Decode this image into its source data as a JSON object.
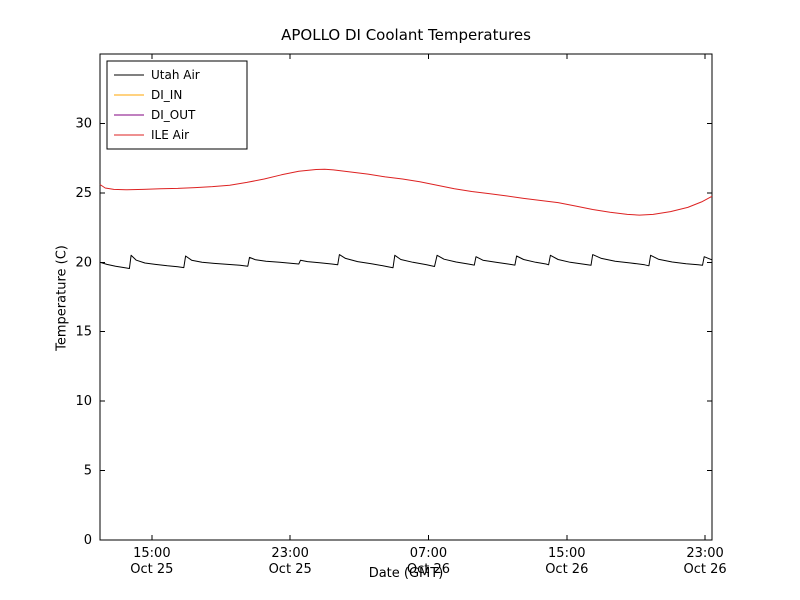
{
  "title": "APOLLO DI Coolant Temperatures",
  "chart_data": {
    "type": "line",
    "title": "APOLLO DI Coolant Temperatures",
    "xlabel": "Date (GMT)",
    "ylabel": "Temperature (C)",
    "xlim": [
      0,
      35.4
    ],
    "ylim": [
      0,
      35
    ],
    "grid": false,
    "legend_position": "upper left",
    "yticks": [
      0,
      5,
      10,
      15,
      20,
      25,
      30
    ],
    "xticks": [
      {
        "pos": 3,
        "time": "15:00",
        "date": "Oct 25"
      },
      {
        "pos": 11,
        "time": "23:00",
        "date": "Oct 25"
      },
      {
        "pos": 19,
        "time": "07:00",
        "date": "Oct 26"
      },
      {
        "pos": 27,
        "time": "15:00",
        "date": "Oct 26"
      },
      {
        "pos": 35,
        "time": "23:00",
        "date": "Oct 26"
      }
    ],
    "x_units": "hours relative to 12:00 Oct 25 GMT",
    "series": [
      {
        "name": "Utah Air",
        "color": "#000000",
        "points": [
          [
            0,
            20.0
          ],
          [
            0.4,
            19.85
          ],
          [
            0.9,
            19.72
          ],
          [
            1.4,
            19.62
          ],
          [
            1.7,
            19.55
          ],
          [
            1.8,
            20.5
          ],
          [
            2.1,
            20.15
          ],
          [
            2.6,
            19.95
          ],
          [
            3.2,
            19.85
          ],
          [
            3.9,
            19.75
          ],
          [
            4.5,
            19.68
          ],
          [
            4.85,
            19.62
          ],
          [
            4.95,
            20.45
          ],
          [
            5.3,
            20.15
          ],
          [
            5.9,
            20.0
          ],
          [
            6.6,
            19.92
          ],
          [
            7.4,
            19.85
          ],
          [
            8.1,
            19.78
          ],
          [
            8.55,
            19.72
          ],
          [
            8.65,
            20.35
          ],
          [
            9.0,
            20.18
          ],
          [
            9.6,
            20.08
          ],
          [
            10.4,
            20.0
          ],
          [
            11.1,
            19.92
          ],
          [
            11.5,
            19.88
          ],
          [
            11.6,
            20.15
          ],
          [
            12.0,
            20.05
          ],
          [
            12.7,
            19.96
          ],
          [
            13.4,
            19.88
          ],
          [
            13.75,
            19.82
          ],
          [
            13.85,
            20.55
          ],
          [
            14.2,
            20.28
          ],
          [
            14.9,
            20.05
          ],
          [
            15.7,
            19.9
          ],
          [
            16.5,
            19.72
          ],
          [
            16.95,
            19.6
          ],
          [
            17.05,
            20.5
          ],
          [
            17.4,
            20.2
          ],
          [
            18.1,
            20.0
          ],
          [
            18.9,
            19.82
          ],
          [
            19.35,
            19.7
          ],
          [
            19.5,
            20.5
          ],
          [
            19.9,
            20.22
          ],
          [
            20.6,
            20.02
          ],
          [
            21.3,
            19.88
          ],
          [
            21.65,
            19.8
          ],
          [
            21.75,
            20.4
          ],
          [
            22.15,
            20.15
          ],
          [
            22.9,
            20.0
          ],
          [
            23.6,
            19.88
          ],
          [
            24.0,
            19.8
          ],
          [
            24.1,
            20.45
          ],
          [
            24.5,
            20.2
          ],
          [
            25.2,
            20.0
          ],
          [
            25.8,
            19.88
          ],
          [
            25.95,
            19.82
          ],
          [
            26.05,
            20.5
          ],
          [
            26.5,
            20.2
          ],
          [
            27.2,
            20.0
          ],
          [
            28.0,
            19.86
          ],
          [
            28.4,
            19.78
          ],
          [
            28.5,
            20.55
          ],
          [
            29.0,
            20.28
          ],
          [
            29.8,
            20.08
          ],
          [
            30.7,
            19.95
          ],
          [
            31.5,
            19.82
          ],
          [
            31.75,
            19.75
          ],
          [
            31.85,
            20.5
          ],
          [
            32.3,
            20.22
          ],
          [
            33.1,
            20.02
          ],
          [
            33.9,
            19.9
          ],
          [
            34.6,
            19.82
          ],
          [
            34.85,
            19.78
          ],
          [
            34.95,
            20.4
          ],
          [
            35.3,
            20.22
          ],
          [
            35.4,
            20.18
          ]
        ]
      },
      {
        "name": "DI_IN",
        "color": "#ffa500",
        "points": []
      },
      {
        "name": "DI_OUT",
        "color": "#800080",
        "points": []
      },
      {
        "name": "ILE Air",
        "color": "#dd2222",
        "points": [
          [
            0,
            25.6
          ],
          [
            0.3,
            25.35
          ],
          [
            0.8,
            25.25
          ],
          [
            1.5,
            25.22
          ],
          [
            2.5,
            25.25
          ],
          [
            3.5,
            25.3
          ],
          [
            4.5,
            25.32
          ],
          [
            5.5,
            25.38
          ],
          [
            6.5,
            25.45
          ],
          [
            7.5,
            25.55
          ],
          [
            8.5,
            25.75
          ],
          [
            9.5,
            26.0
          ],
          [
            10.5,
            26.3
          ],
          [
            11.5,
            26.55
          ],
          [
            12.5,
            26.68
          ],
          [
            13.0,
            26.7
          ],
          [
            13.5,
            26.65
          ],
          [
            14.5,
            26.5
          ],
          [
            15.5,
            26.35
          ],
          [
            16.5,
            26.15
          ],
          [
            17.5,
            26.0
          ],
          [
            18.5,
            25.8
          ],
          [
            19.5,
            25.55
          ],
          [
            20.5,
            25.3
          ],
          [
            21.5,
            25.1
          ],
          [
            22.5,
            24.95
          ],
          [
            23.5,
            24.78
          ],
          [
            24.5,
            24.6
          ],
          [
            25.5,
            24.45
          ],
          [
            26.5,
            24.3
          ],
          [
            27.5,
            24.05
          ],
          [
            28.5,
            23.8
          ],
          [
            29.5,
            23.6
          ],
          [
            30.5,
            23.45
          ],
          [
            31.2,
            23.4
          ],
          [
            32.0,
            23.45
          ],
          [
            33.0,
            23.65
          ],
          [
            34.0,
            23.95
          ],
          [
            34.8,
            24.35
          ],
          [
            35.4,
            24.75
          ]
        ]
      }
    ]
  }
}
